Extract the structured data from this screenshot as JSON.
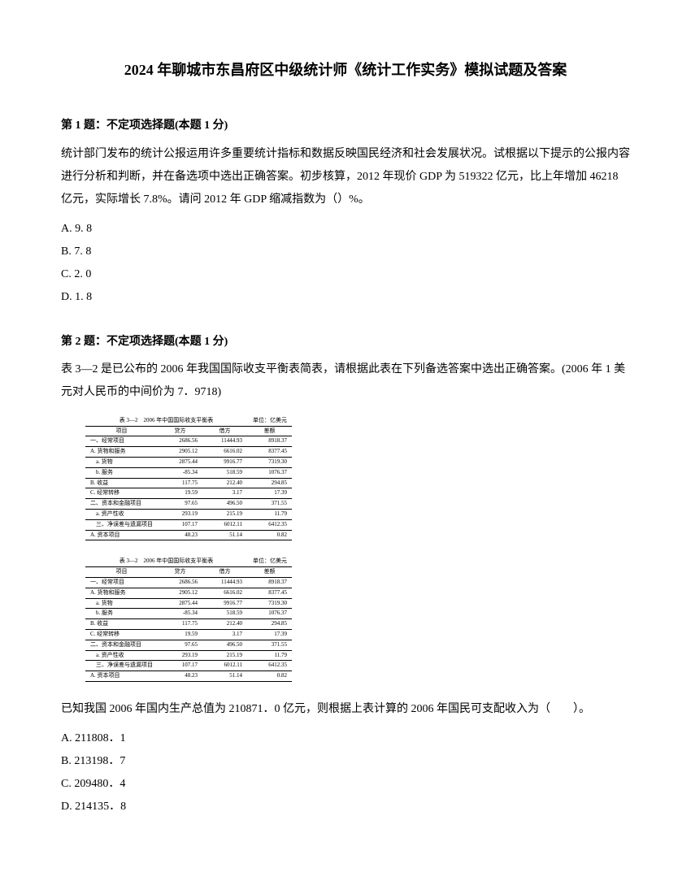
{
  "title": "2024 年聊城市东昌府区中级统计师《统计工作实务》模拟试题及答案",
  "q1": {
    "header": "第 1 题：不定项选择题(本题 1 分)",
    "text": "统计部门发布的统计公报运用许多重要统计指标和数据反映国民经济和社会发展状况。试根据以下提示的公报内容进行分析和判断，并在备选项中选出正确答案。初步核算，2012 年现价 GDP 为 519322 亿元，比上年增加 46218 亿元，实际增长 7.8%。请问 2012 年 GDP 缩减指数为（）%。",
    "options": {
      "a": "A. 9. 8",
      "b": "B. 7. 8",
      "c": "C. 2. 0",
      "d": "D. 1. 8"
    }
  },
  "q2": {
    "header": "第 2 题：不定项选择题(本题 1 分)",
    "text": "表 3—2 是已公布的 2006 年我国国际收支平衡表简表，请根据此表在下列备选答案中选出正确答案。(2006 年 1 美元对人民币的中间价为 7．9718)",
    "followup": "已知我国 2006 年国内生产总值为 210871．0 亿元，则根据上表计算的 2006 年国民可支配收入为（　　）。",
    "options": {
      "a": "A. 211808．1",
      "b": "B. 213198．7",
      "c": "C. 209480．4",
      "d": "D. 214135．8"
    }
  },
  "table": {
    "title_left": "表 3—2　2006 年中国国际收支平衡表",
    "title_right": "单位：亿美元",
    "headers": [
      "项目",
      "贷方",
      "借方",
      "差额"
    ],
    "rows": [
      [
        "一、经常项目",
        "2686.56",
        "11444.93",
        "8918.37"
      ],
      [
        "A. 货物和服务",
        "2905.12",
        "6616.02",
        "8377.45"
      ],
      [
        "　a. 货物",
        "2875.44",
        "9916.77",
        "7319.30"
      ],
      [
        "　b. 服务",
        "-85.34",
        "518.59",
        "1076.37"
      ],
      [
        "B. 收益",
        "117.75",
        "212.40",
        "294.85"
      ],
      [
        "C. 经常转移",
        "19.59",
        "3.17",
        "17.39"
      ],
      [
        "二、资本和金融项目",
        "97.65",
        "496.50",
        "371.55"
      ],
      [
        "　a. 资产性收",
        "293.19",
        "215.19",
        "11.79"
      ],
      [
        "　三、净误差与遗漏项目",
        "107.17",
        "6012.11",
        "6412.35"
      ],
      [
        "A. 资本项目",
        "48.23",
        "51.14",
        "0.82"
      ]
    ]
  }
}
